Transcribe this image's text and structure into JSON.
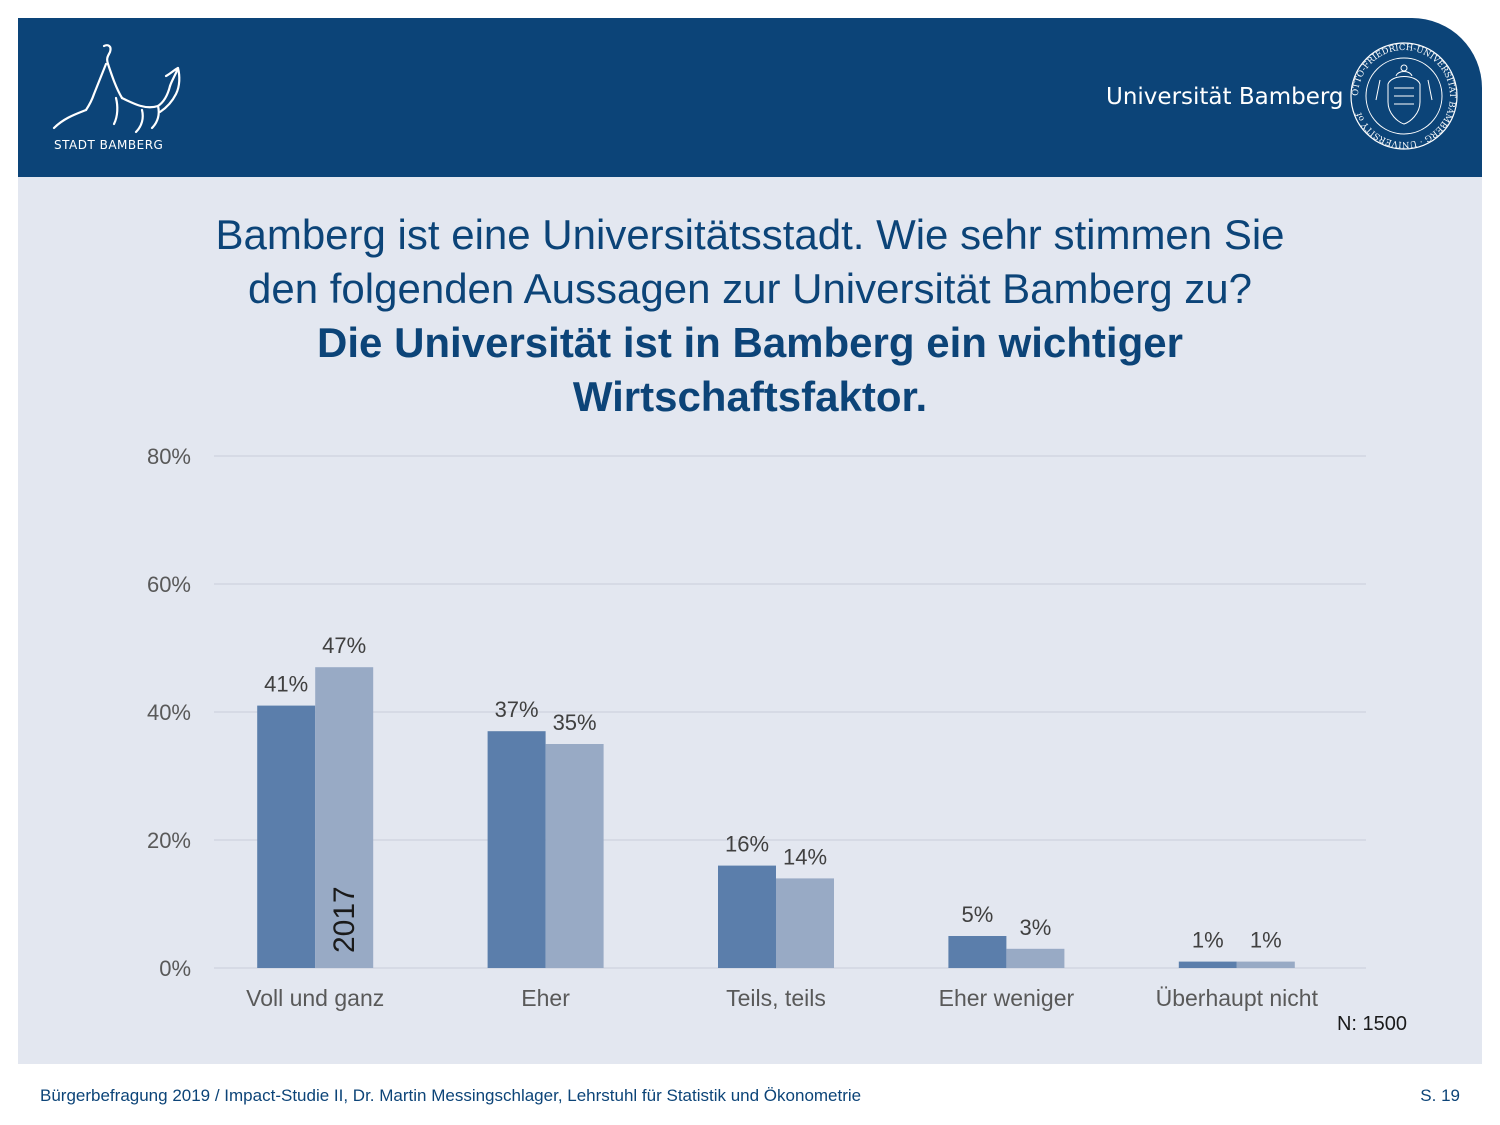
{
  "header": {
    "city_logo_label": "STADT BAMBERG",
    "university_name": "Universität Bamberg",
    "seal_text": "OTTO-FRIEDRICH-UNIVERSITÄT BAMBERG · UNIVERSITY of"
  },
  "title": {
    "line1": "Bamberg ist eine Universitätsstadt. Wie sehr stimmen Sie",
    "line2": "den folgenden Aussagen zur Universität Bamberg zu?",
    "line3": "Die Universität ist in Bamberg ein wichtiger",
    "line4": "Wirtschaftsfaktor."
  },
  "chart_data": {
    "type": "bar",
    "categories": [
      "Voll und ganz",
      "Eher",
      "Teils, teils",
      "Eher weniger",
      "Überhaupt nicht"
    ],
    "series": [
      {
        "values": [
          41,
          37,
          16,
          5,
          1
        ],
        "labels": [
          "41%",
          "37%",
          "16%",
          "5%",
          "1%"
        ],
        "color": "#5b7eab"
      },
      {
        "name": "2017",
        "values": [
          47,
          35,
          14,
          3,
          1
        ],
        "labels": [
          "47%",
          "35%",
          "14%",
          "3%",
          "1%"
        ],
        "color": "#98aac5"
      }
    ],
    "yticks": [
      "0%",
      "20%",
      "40%",
      "60%",
      "80%"
    ],
    "ylim": [
      0,
      80
    ],
    "grid": true,
    "n_label": "N: 1500"
  },
  "footer": {
    "source": "Bürgerbefragung 2019 / Impact-Studie II, Dr. Martin Messingschlager, Lehrstuhl für Statistik und Ökonometrie",
    "page": "S. 19"
  }
}
